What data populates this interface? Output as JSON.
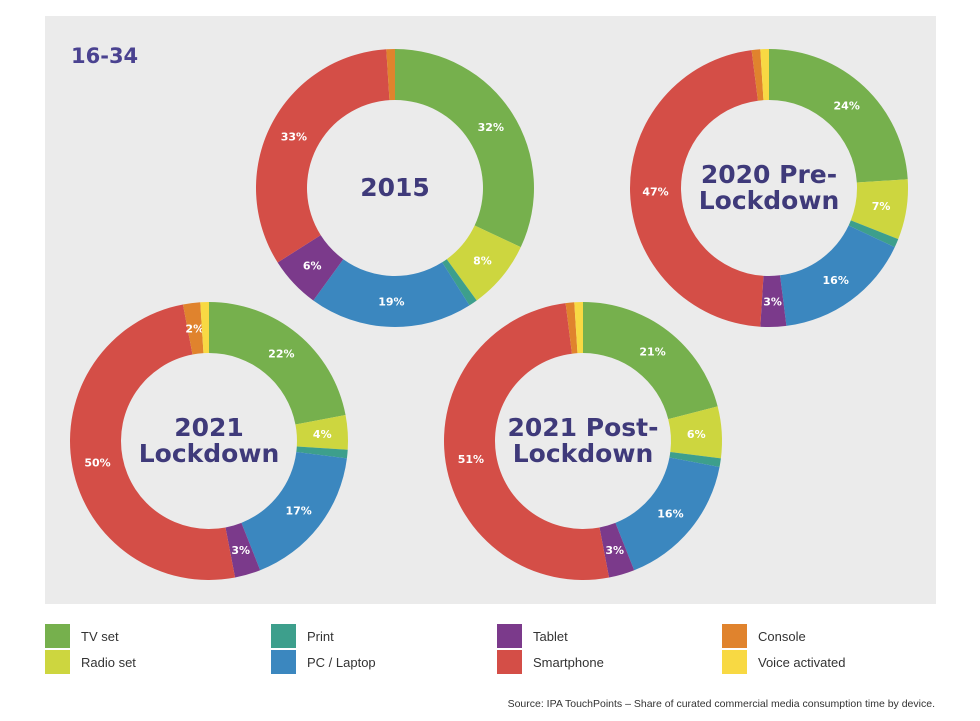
{
  "chart_data": {
    "type": "donut",
    "group_label": "16-34",
    "source": "Source: IPA TouchPoints – Share of curated commercial media consumption time by device.",
    "legend": [
      {
        "name": "TV set",
        "color": "#76b04d"
      },
      {
        "name": "Radio set",
        "color": "#cdd63f"
      },
      {
        "name": "Print",
        "color": "#3d9f8c"
      },
      {
        "name": "PC / Laptop",
        "color": "#3b87bf"
      },
      {
        "name": "Tablet",
        "color": "#7b3a8b"
      },
      {
        "name": "Smartphone",
        "color": "#d44e47"
      },
      {
        "name": "Console",
        "color": "#e0832d"
      },
      {
        "name": "Voice activated",
        "color": "#f8d943"
      }
    ],
    "donuts": [
      {
        "title_lines": [
          "2015"
        ],
        "slices": [
          {
            "category": "TV set",
            "value": 32,
            "label": "32%"
          },
          {
            "category": "Radio set",
            "value": 8,
            "label": "8%"
          },
          {
            "category": "Print",
            "value": 1,
            "label": ""
          },
          {
            "category": "PC / Laptop",
            "value": 19,
            "label": "19%"
          },
          {
            "category": "Tablet",
            "value": 6,
            "label": "6%"
          },
          {
            "category": "Smartphone",
            "value": 33,
            "label": "33%"
          },
          {
            "category": "Console",
            "value": 1,
            "label": ""
          }
        ]
      },
      {
        "title_lines": [
          "2020 Pre-",
          "Lockdown"
        ],
        "slices": [
          {
            "category": "TV set",
            "value": 24,
            "label": "24%"
          },
          {
            "category": "Radio set",
            "value": 7,
            "label": "7%"
          },
          {
            "category": "Print",
            "value": 1,
            "label": ""
          },
          {
            "category": "PC / Laptop",
            "value": 16,
            "label": "16%"
          },
          {
            "category": "Tablet",
            "value": 3,
            "label": "3%"
          },
          {
            "category": "Smartphone",
            "value": 47,
            "label": "47%"
          },
          {
            "category": "Console",
            "value": 1,
            "label": ""
          },
          {
            "category": "Voice activated",
            "value": 1,
            "label": ""
          }
        ]
      },
      {
        "title_lines": [
          "2021",
          "Lockdown"
        ],
        "slices": [
          {
            "category": "TV set",
            "value": 22,
            "label": "22%"
          },
          {
            "category": "Radio set",
            "value": 4,
            "label": "4%"
          },
          {
            "category": "Print",
            "value": 1,
            "label": ""
          },
          {
            "category": "PC / Laptop",
            "value": 17,
            "label": "17%"
          },
          {
            "category": "Tablet",
            "value": 3,
            "label": "3%"
          },
          {
            "category": "Smartphone",
            "value": 50,
            "label": "50%"
          },
          {
            "category": "Console",
            "value": 2,
            "label": "2%"
          },
          {
            "category": "Voice activated",
            "value": 1,
            "label": ""
          }
        ]
      },
      {
        "title_lines": [
          "2021 Post-",
          "Lockdown"
        ],
        "slices": [
          {
            "category": "TV set",
            "value": 21,
            "label": "21%"
          },
          {
            "category": "Radio set",
            "value": 6,
            "label": "6%"
          },
          {
            "category": "Print",
            "value": 1,
            "label": ""
          },
          {
            "category": "PC / Laptop",
            "value": 16,
            "label": "16%"
          },
          {
            "category": "Tablet",
            "value": 3,
            "label": "3%"
          },
          {
            "category": "Smartphone",
            "value": 51,
            "label": "51%"
          },
          {
            "category": "Console",
            "value": 1,
            "label": ""
          },
          {
            "category": "Voice activated",
            "value": 1,
            "label": ""
          }
        ]
      }
    ]
  }
}
